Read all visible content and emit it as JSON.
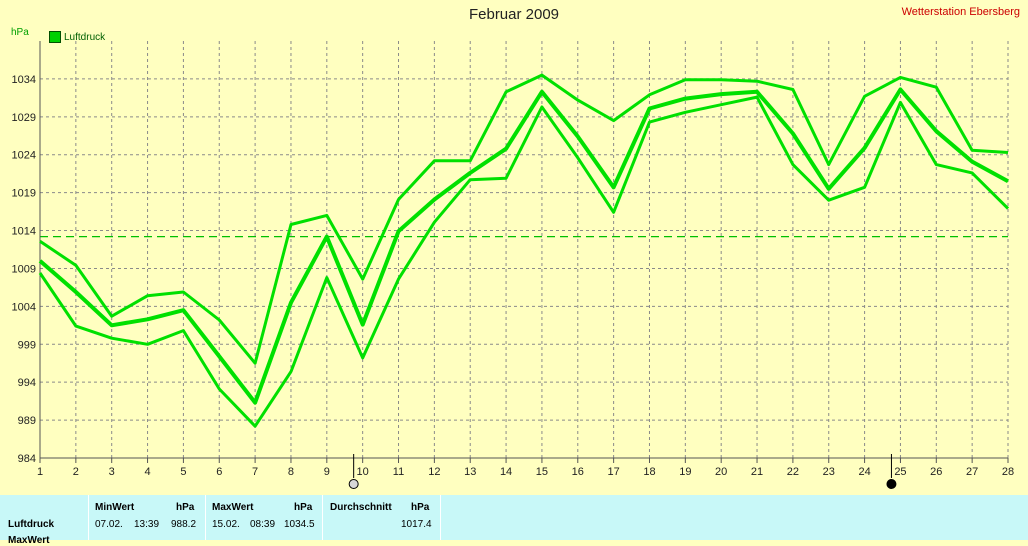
{
  "title": "Februar 2009",
  "station": "Wetterstation Ebersberg",
  "unit_label": "hPa",
  "legend_label": "Luftdruck",
  "colors": {
    "series": "#00e000",
    "grid": "#8a8a8a",
    "reference": "#00c000",
    "background": "#ffffc0",
    "panel": "#c8f8f8"
  },
  "chart_data": {
    "type": "line",
    "x": [
      1,
      2,
      3,
      4,
      5,
      6,
      7,
      8,
      9,
      10,
      11,
      12,
      13,
      14,
      15,
      16,
      17,
      18,
      19,
      20,
      21,
      22,
      23,
      24,
      25,
      26,
      27,
      28
    ],
    "yticks": [
      984,
      989,
      994,
      999,
      1004,
      1009,
      1014,
      1019,
      1024,
      1029,
      1034
    ],
    "ylim": [
      984,
      1039
    ],
    "xlim": [
      1,
      28
    ],
    "grid": true,
    "reference_line": 1013.2,
    "series": [
      {
        "role": "max",
        "values": [
          1012.6,
          1009.4,
          1002.7,
          1005.4,
          1005.9,
          1002.2,
          996.5,
          1014.8,
          1016.0,
          1007.6,
          1018.1,
          1023.2,
          1023.2,
          1032.3,
          1034.5,
          1031.2,
          1028.5,
          1031.9,
          1033.9,
          1033.9,
          1033.7,
          1032.6,
          1022.7,
          1031.7,
          1034.2,
          1032.9,
          1024.6,
          1024.3
        ]
      },
      {
        "role": "mean",
        "values": [
          1010.0,
          1005.9,
          1001.5,
          1002.3,
          1003.5,
          997.4,
          991.3,
          1004.5,
          1013.2,
          1001.6,
          1013.9,
          1018.1,
          1021.6,
          1024.8,
          1032.3,
          1026.4,
          1019.7,
          1030.1,
          1031.4,
          1032.0,
          1032.3,
          1026.8,
          1019.5,
          1024.9,
          1032.6,
          1027.1,
          1023.1,
          1020.5
        ]
      },
      {
        "role": "min",
        "values": [
          1008.4,
          1001.4,
          999.8,
          999.0,
          1000.8,
          993.1,
          988.2,
          995.4,
          1007.8,
          997.2,
          1007.6,
          1015.1,
          1020.7,
          1020.9,
          1030.3,
          1023.6,
          1016.4,
          1028.3,
          1029.6,
          1030.6,
          1031.6,
          1022.7,
          1018.0,
          1019.7,
          1030.9,
          1022.7,
          1021.6,
          1016.9
        ]
      }
    ],
    "markers": [
      {
        "x": 10,
        "style": "open"
      },
      {
        "x": 25,
        "style": "filled"
      }
    ]
  },
  "stats": {
    "min_header": "MinWert",
    "max_header": "MaxWert",
    "avg_header": "Durchschnitt",
    "unit": "hPa",
    "row_label": "Luftdruck",
    "row_label_2": "MaxWert",
    "min_date": "07.02.",
    "min_time": "13:39",
    "min_value": "988.2",
    "max_date": "15.02.",
    "max_time": "08:39",
    "max_value": "1034.5",
    "avg_value": "1017.4"
  }
}
